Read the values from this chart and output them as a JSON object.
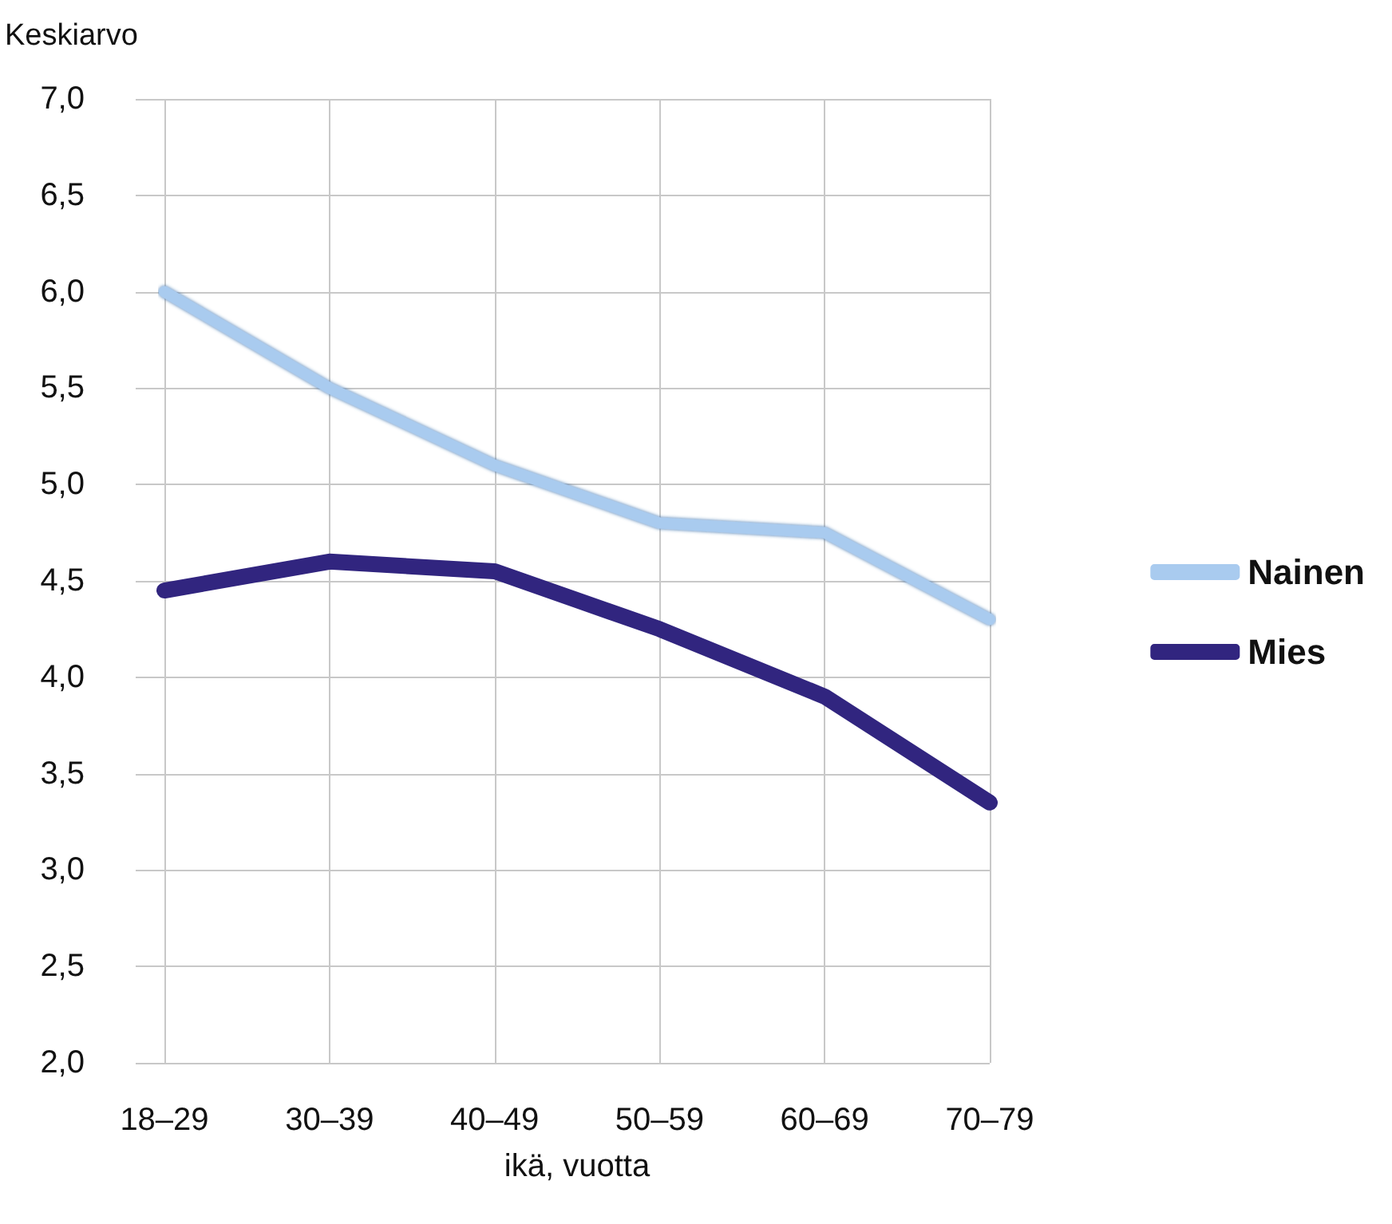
{
  "chart_data": {
    "type": "line",
    "ylabel": "Keskiarvo",
    "xlabel": "ikä, vuotta",
    "categories": [
      "18–29",
      "30–39",
      "40–49",
      "50–59",
      "60–69",
      "70–79"
    ],
    "series": [
      {
        "name": "Nainen",
        "color": "#a9cbef",
        "values": [
          6.0,
          5.5,
          5.1,
          4.8,
          4.75,
          4.3
        ]
      },
      {
        "name": "Mies",
        "color": "#31257f",
        "values": [
          4.45,
          4.6,
          4.55,
          4.25,
          3.9,
          3.35
        ]
      }
    ],
    "ylim": [
      2.0,
      7.0
    ],
    "yticks": [
      {
        "value": 2,
        "label": "2,0"
      },
      {
        "value": 2.5,
        "label": "2,5"
      },
      {
        "value": 3,
        "label": "3,0"
      },
      {
        "value": 3.5,
        "label": "3,5"
      },
      {
        "value": 4,
        "label": "4,0"
      },
      {
        "value": 4.5,
        "label": "4,5"
      },
      {
        "value": 5,
        "label": "5,0"
      },
      {
        "value": 5.5,
        "label": "5,5"
      },
      {
        "value": 6,
        "label": "6,0"
      },
      {
        "value": 6.5,
        "label": "6,5"
      },
      {
        "value": 7,
        "label": "7,0"
      }
    ],
    "grid": true,
    "legend": "right",
    "line_style": "solid"
  }
}
